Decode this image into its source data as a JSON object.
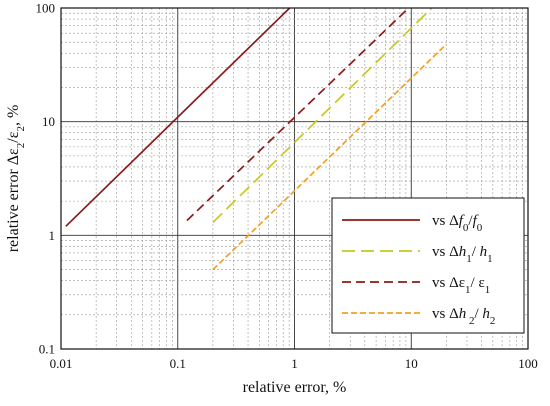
{
  "chart_data": {
    "type": "line",
    "xlabel": "relative error, %",
    "ylabel_parts": [
      "relative error Δε",
      "2",
      "/ε",
      "2",
      ", %"
    ],
    "xscale": "log",
    "yscale": "log",
    "xlim": [
      0.01,
      100
    ],
    "ylim": [
      0.1,
      100
    ],
    "x_ticks": [
      "0.01",
      "0.1",
      "1",
      "10",
      "100"
    ],
    "y_ticks": [
      "0.1",
      "1",
      "10",
      "100"
    ],
    "grid": true,
    "legend_position": "lower-right",
    "series": [
      {
        "name_parts": [
          {
            "t": "vs Δ",
            "s": "n"
          },
          {
            "t": "f",
            "s": "i"
          },
          {
            "t": "0",
            "s": "sub"
          },
          {
            "t": "/",
            "s": "n"
          },
          {
            "t": "f",
            "s": "i"
          },
          {
            "t": "0",
            "s": "sub"
          }
        ],
        "color": "#8B1A1A",
        "dash": "solid",
        "x": [
          0.011,
          1.0
        ],
        "y": [
          1.2,
          110
        ]
      },
      {
        "name_parts": [
          {
            "t": "vs Δ",
            "s": "n"
          },
          {
            "t": "h",
            "s": "i"
          },
          {
            "t": "1",
            "s": "sub"
          },
          {
            "t": "/ ",
            "s": "n"
          },
          {
            "t": "h",
            "s": "i"
          },
          {
            "t": "1",
            "s": "sub"
          }
        ],
        "color": "#C8C81E",
        "dash": "long",
        "x": [
          0.2,
          15
        ],
        "y": [
          1.3,
          100
        ]
      },
      {
        "name_parts": [
          {
            "t": "vs Δε",
            "s": "n"
          },
          {
            "t": "1",
            "s": "sub"
          },
          {
            "t": "/ ε",
            "s": "n"
          },
          {
            "t": "1",
            "s": "sub"
          }
        ],
        "color": "#8B1A1A",
        "dash": "medium",
        "x": [
          0.12,
          9.5
        ],
        "y": [
          1.35,
          100
        ]
      },
      {
        "name_parts": [
          {
            "t": "vs Δ",
            "s": "n"
          },
          {
            "t": "h",
            "s": "i"
          },
          {
            "t": " 2",
            "s": "sub"
          },
          {
            "t": "/ ",
            "s": "n"
          },
          {
            "t": "h",
            "s": "i"
          },
          {
            "t": "2",
            "s": "sub"
          }
        ],
        "color": "#F5A020",
        "dash": "short",
        "x": [
          0.2,
          20
        ],
        "y": [
          0.5,
          48
        ]
      }
    ]
  }
}
